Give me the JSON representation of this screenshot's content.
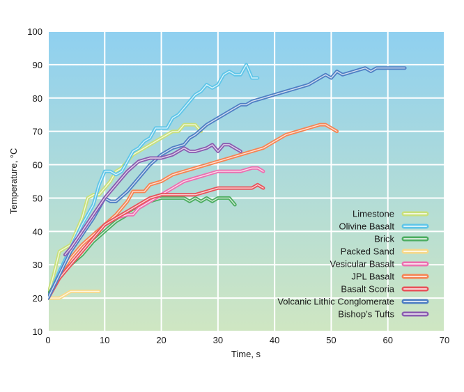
{
  "chart_data": {
    "type": "line",
    "title": "",
    "xlabel": "Time, s",
    "ylabel": "Temperature, °C",
    "xlim": [
      0,
      70
    ],
    "ylim": [
      10,
      100
    ],
    "xticks": [
      0,
      10,
      20,
      30,
      40,
      50,
      60,
      70
    ],
    "yticks": [
      10,
      20,
      30,
      40,
      50,
      60,
      70,
      80,
      90,
      100
    ],
    "grid": true,
    "legend_position": "bottom-right",
    "background": {
      "top": "#8fd0f0",
      "bottom": "#cfe6c2"
    },
    "series": [
      {
        "name": "Limestone",
        "color": "#c8e07a",
        "x": [
          0,
          1,
          2,
          3,
          4,
          5,
          6,
          7,
          8,
          9,
          10,
          11,
          12,
          13,
          14,
          15,
          16,
          17,
          18,
          19,
          20,
          21,
          22,
          23,
          24,
          25,
          26,
          27
        ],
        "y": [
          21,
          27,
          34,
          35,
          36,
          40,
          44,
          50,
          51,
          51,
          53,
          55,
          58,
          59,
          61,
          63,
          64,
          65,
          66,
          67,
          68,
          69,
          70,
          70,
          72,
          72,
          72,
          70
        ]
      },
      {
        "name": "Olivine Basalt",
        "color": "#5ec5e8",
        "x": [
          0,
          2,
          4,
          6,
          8,
          9,
          10,
          11,
          12,
          13,
          14,
          15,
          16,
          17,
          18,
          19,
          20,
          21,
          22,
          23,
          24,
          25,
          26,
          27,
          28,
          29,
          30,
          31,
          32,
          33,
          34,
          35,
          36,
          37
        ],
        "y": [
          20,
          28,
          35,
          42,
          48,
          54,
          58,
          58,
          57,
          58,
          61,
          64,
          65,
          67,
          68,
          71,
          71,
          71,
          74,
          75,
          77,
          79,
          81,
          82,
          84,
          83,
          84,
          87,
          88,
          87,
          87,
          90,
          86,
          86
        ]
      },
      {
        "name": "Brick",
        "color": "#4cad60",
        "x": [
          0,
          2,
          4,
          6,
          8,
          10,
          12,
          14,
          16,
          18,
          20,
          22,
          24,
          25,
          26,
          27,
          28,
          29,
          30,
          31,
          32,
          33
        ],
        "y": [
          21,
          26,
          30,
          33,
          37,
          40,
          43,
          45,
          47,
          49,
          50,
          50,
          50,
          49,
          50,
          49,
          50,
          49,
          50,
          50,
          50,
          48
        ]
      },
      {
        "name": "Packed Sand",
        "color": "#f7d98a",
        "x": [
          0,
          1,
          2,
          3,
          4,
          5,
          6,
          7,
          8,
          9
        ],
        "y": [
          20,
          20,
          20,
          21,
          22,
          22,
          22,
          22,
          22,
          22
        ]
      },
      {
        "name": "Vesicular Basalt",
        "color": "#ec6fb0",
        "x": [
          0,
          2,
          4,
          6,
          8,
          10,
          12,
          14,
          15,
          16,
          18,
          20,
          22,
          24,
          26,
          28,
          30,
          32,
          34,
          36,
          37,
          38
        ],
        "y": [
          20,
          26,
          31,
          35,
          39,
          42,
          44,
          45,
          45,
          47,
          49,
          51,
          53,
          55,
          56,
          57,
          58,
          58,
          58,
          59,
          59,
          58
        ]
      },
      {
        "name": "JPL Basalt",
        "color": "#f58453",
        "x": [
          0,
          2,
          4,
          6,
          8,
          10,
          12,
          14,
          15,
          16,
          17,
          18,
          20,
          22,
          24,
          26,
          28,
          30,
          32,
          34,
          36,
          38,
          40,
          42,
          44,
          46,
          48,
          49,
          50,
          51
        ],
        "y": [
          20,
          27,
          32,
          36,
          39,
          42,
          45,
          49,
          52,
          52,
          52,
          54,
          55,
          57,
          58,
          59,
          60,
          61,
          62,
          63,
          64,
          65,
          67,
          69,
          70,
          71,
          72,
          72,
          71,
          70
        ]
      },
      {
        "name": "Basalt Scoria",
        "color": "#e8525a",
        "x": [
          0,
          2,
          4,
          6,
          8,
          10,
          12,
          14,
          16,
          18,
          20,
          22,
          24,
          26,
          28,
          30,
          32,
          34,
          36,
          37,
          38
        ],
        "y": [
          20,
          26,
          30,
          34,
          38,
          42,
          44,
          46,
          48,
          50,
          51,
          51,
          51,
          51,
          52,
          53,
          53,
          53,
          53,
          54,
          53
        ]
      },
      {
        "name": "Volcanic Lithic Conglomerate",
        "color": "#4f7fc4",
        "x": [
          0,
          2,
          4,
          6,
          8,
          9,
          10,
          11,
          12,
          14,
          16,
          18,
          20,
          22,
          24,
          25,
          26,
          28,
          30,
          32,
          34,
          35,
          36,
          38,
          40,
          42,
          44,
          46,
          48,
          49,
          50,
          51,
          52,
          54,
          56,
          57,
          58,
          60,
          62,
          63
        ],
        "y": [
          20,
          27,
          34,
          39,
          44,
          47,
          50,
          49,
          49,
          52,
          56,
          60,
          63,
          65,
          66,
          68,
          69,
          72,
          74,
          76,
          78,
          78,
          79,
          80,
          81,
          82,
          83,
          84,
          86,
          87,
          86,
          88,
          87,
          88,
          89,
          88,
          89,
          89,
          89,
          89
        ]
      },
      {
        "name": "Bishop's Tufts",
        "color": "#8a5bb0",
        "x": [
          3,
          4,
          6,
          8,
          10,
          12,
          14,
          16,
          18,
          20,
          22,
          24,
          25,
          26,
          28,
          29,
          30,
          31,
          32,
          33,
          34
        ],
        "y": [
          33,
          35,
          40,
          45,
          50,
          54,
          58,
          61,
          62,
          62,
          63,
          65,
          64,
          64,
          65,
          66,
          64,
          66,
          66,
          65,
          64
        ]
      }
    ]
  },
  "legend": {
    "items": [
      "Limestone",
      "Olivine Basalt",
      "Brick",
      "Packed Sand",
      "Vesicular Basalt",
      "JPL Basalt",
      "Basalt Scoria",
      "Volcanic Lithic Conglomerate",
      "Bishop’s Tufts"
    ]
  }
}
